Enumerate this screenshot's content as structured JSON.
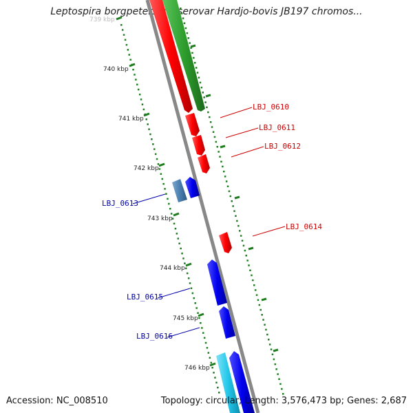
{
  "title": "Leptospira borgpetersenii serovar Hardjo-bovis JB197 chromos...",
  "footer": {
    "accession": "Accession: NC_008510",
    "summary": "Topology: circular; Length: 3,576,473 bp; Genes: 2,687"
  },
  "colors": {
    "backbone": "#888888",
    "tick": "#1e7d1e",
    "red": "#ff0000",
    "green": "#2e9e2e",
    "blue": "#0000ee",
    "steel": "#4a7fb0",
    "cyan": "#22c6ea",
    "label_red": "#cc0000",
    "label_blue": "#0000aa"
  },
  "ruler": {
    "ticks": [
      {
        "label": "739 kbp"
      },
      {
        "label": "740 kbp"
      },
      {
        "label": "741 kbp"
      },
      {
        "label": "742 kbp"
      },
      {
        "label": "743 kbp"
      },
      {
        "label": "744 kbp"
      },
      {
        "label": "745 kbp"
      },
      {
        "label": "746 kbp"
      }
    ]
  },
  "genes": [
    {
      "label": "LBJ_0610",
      "color": "red"
    },
    {
      "label": "LBJ_0611",
      "color": "red"
    },
    {
      "label": "LBJ_0612",
      "color": "red"
    },
    {
      "label": "LBJ_0613",
      "color": "blue"
    },
    {
      "label": "LBJ_0614",
      "color": "red"
    },
    {
      "label": "LBJ_0615",
      "color": "blue"
    },
    {
      "label": "LBJ_0616",
      "color": "blue"
    }
  ]
}
